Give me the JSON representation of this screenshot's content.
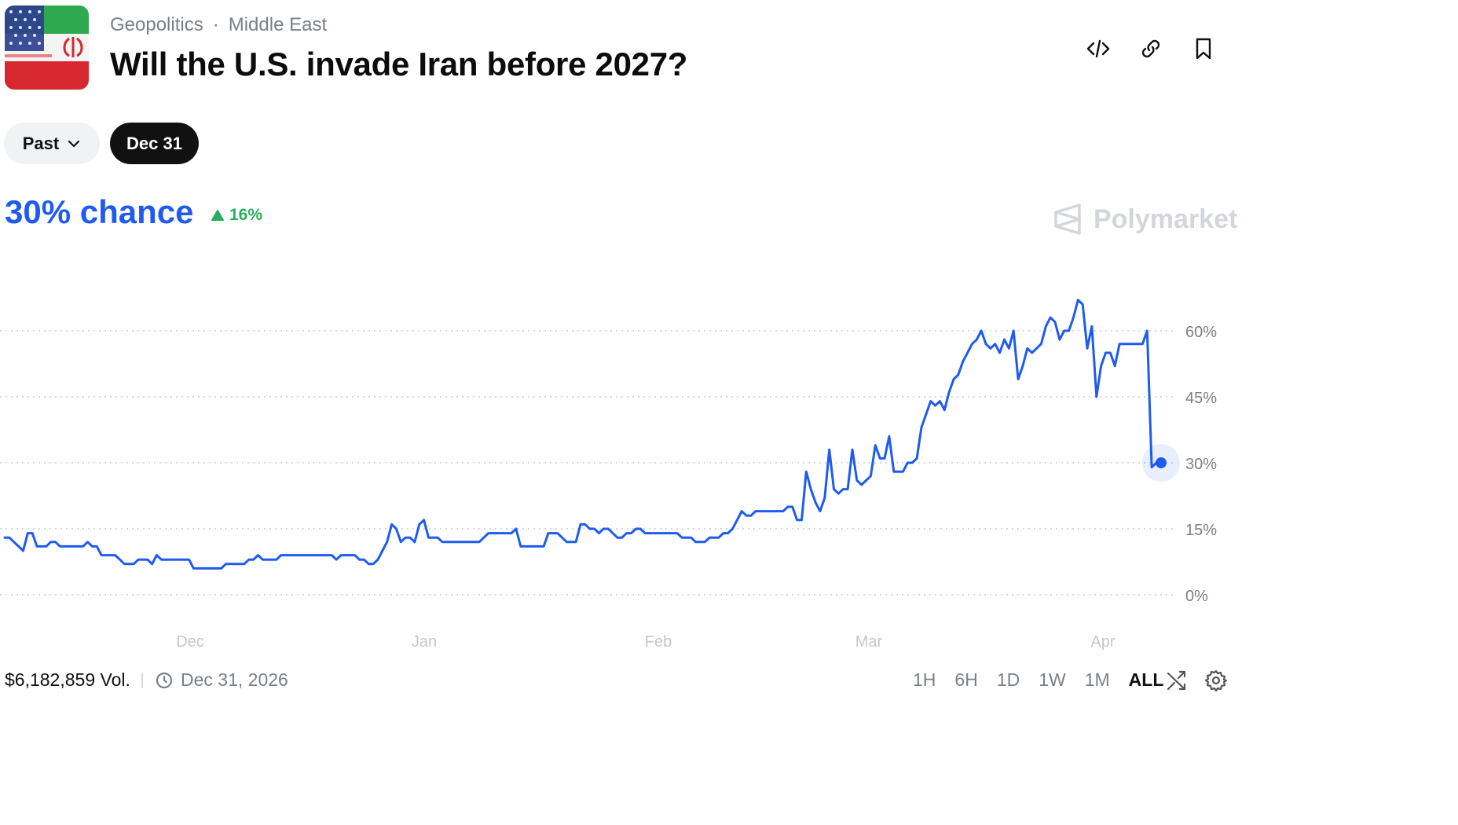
{
  "header": {
    "category": "Geopolitics",
    "subcategory": "Middle East",
    "title": "Will the U.S. invade Iran before 2027?",
    "flag_icon": "us-iran-flag-icon"
  },
  "actions": {
    "embed_icon": "code-icon",
    "link_icon": "link-icon",
    "bookmark_icon": "bookmark-icon"
  },
  "date_selector": {
    "past_label": "Past",
    "selected_label": "Dec 31"
  },
  "probability": {
    "chance_text": "30% chance",
    "delta_text": "16%",
    "delta_direction": "up",
    "accent_color": "#1f5bf0",
    "delta_color": "#27ae60"
  },
  "brand": {
    "name": "Polymarket"
  },
  "chart_data": {
    "type": "line",
    "series": [
      {
        "values": [
          13,
          13,
          12,
          11,
          10,
          14,
          14,
          11,
          11,
          11,
          12,
          12,
          11,
          11,
          11,
          11,
          11,
          11,
          12,
          11,
          11,
          9,
          9,
          9,
          9,
          8,
          7,
          7,
          7,
          8,
          8,
          8,
          7,
          9,
          8,
          8,
          8,
          8,
          8,
          8,
          8,
          6,
          6,
          6,
          6,
          6,
          6,
          6,
          7,
          7,
          7,
          7,
          7,
          8,
          8,
          9,
          8,
          8,
          8,
          8,
          9,
          9,
          9,
          9,
          9,
          9,
          9,
          9,
          9,
          9,
          9,
          9,
          8,
          9,
          9,
          9,
          9,
          8,
          8,
          7,
          7,
          8,
          10,
          12,
          16,
          15,
          12,
          13,
          13,
          12,
          16,
          17,
          13,
          13,
          13,
          12,
          12,
          12,
          12,
          12,
          12,
          12,
          12,
          12,
          13,
          14,
          14,
          14,
          14,
          14,
          14,
          15,
          11,
          11,
          11,
          11,
          11,
          11,
          14,
          14,
          14,
          13,
          12,
          12,
          12,
          16,
          16,
          15,
          15,
          14,
          15,
          15,
          14,
          13,
          13,
          14,
          14,
          15,
          15,
          14,
          14,
          14,
          14,
          14,
          14,
          14,
          14,
          13,
          13,
          13,
          12,
          12,
          12,
          13,
          13,
          13,
          14,
          14,
          15,
          17,
          19,
          18,
          18,
          19,
          19,
          19,
          19,
          19,
          19,
          19,
          20,
          20,
          17,
          17,
          28,
          24,
          21,
          19,
          22,
          33,
          24,
          23,
          24,
          24,
          33,
          26,
          25,
          26,
          27,
          34,
          31,
          31,
          36,
          28,
          28,
          28,
          30,
          30,
          31,
          38,
          41,
          44,
          43,
          44,
          42,
          46,
          49,
          50,
          53,
          55,
          57,
          58,
          60,
          57,
          56,
          57,
          55,
          58,
          56,
          60,
          49,
          52,
          56,
          55,
          56,
          57,
          61,
          63,
          62,
          58,
          60,
          60,
          63,
          67,
          66,
          56,
          61,
          45,
          52,
          55,
          55,
          52,
          57,
          57,
          57,
          57,
          57,
          57,
          60,
          29,
          30
        ],
        "current": 30
      }
    ],
    "x_ticks": [
      "Dec",
      "Jan",
      "Feb",
      "Mar",
      "Apr"
    ],
    "y_ticks": [
      "60%",
      "45%",
      "30%",
      "15%",
      "0%"
    ],
    "ylim": [
      0,
      70
    ],
    "grid": true,
    "line_color": "#1f5bf0"
  },
  "footer": {
    "volume": "$6,182,859 Vol.",
    "end_date": "Dec 31, 2026",
    "ranges": [
      "1H",
      "6H",
      "1D",
      "1W",
      "1M",
      "ALL"
    ],
    "active_range": "ALL",
    "shuffle_icon": "shuffle-icon",
    "settings_icon": "gear-icon"
  }
}
